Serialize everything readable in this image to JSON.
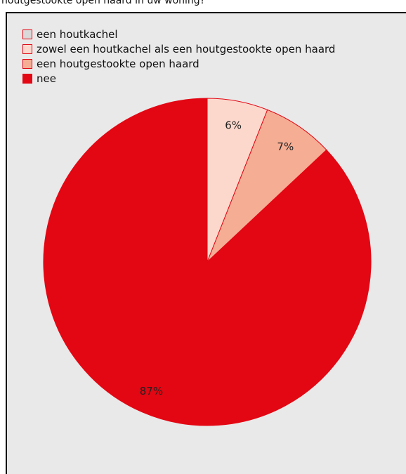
{
  "title": "houtgestookte open haard in uw woning?",
  "chart_data": {
    "type": "pie",
    "series": [
      {
        "name": "een houtkachel",
        "value": 0,
        "label": "",
        "color": "#d9d9d9"
      },
      {
        "name": "zowel een houtkachel als een houtgestookte open haard",
        "value": 6,
        "label": "6%",
        "color": "#fcd8cc"
      },
      {
        "name": "een houtgestookte open haard",
        "value": 7,
        "label": "7%",
        "color": "#f5ad94"
      },
      {
        "name": "nee",
        "value": 87,
        "label": "87%",
        "color": "#e30613"
      }
    ],
    "legend_position": "top-left",
    "start_angle": "12 o'clock",
    "direction": "clockwise"
  }
}
